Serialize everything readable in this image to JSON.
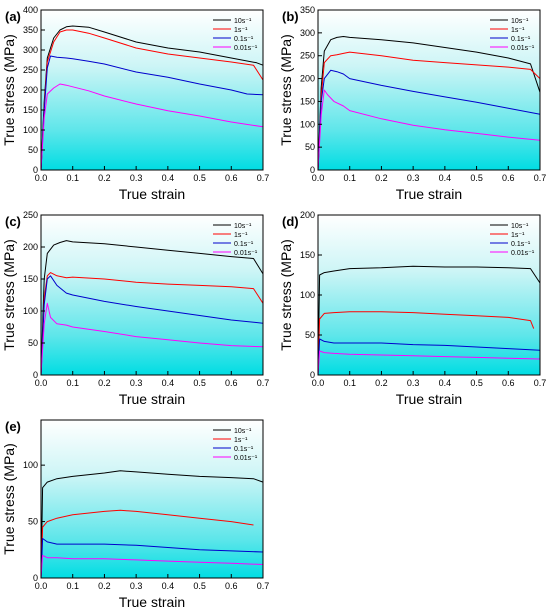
{
  "chart_data": [
    {
      "type": "line",
      "panel": "(a)",
      "xlabel": "True strain",
      "ylabel": "True stress (MPa)",
      "xlim": [
        0.0,
        0.7
      ],
      "ylim": [
        0,
        400
      ],
      "xticks": [
        0.0,
        0.1,
        0.2,
        0.3,
        0.4,
        0.5,
        0.6,
        0.7
      ],
      "yticks": [
        0,
        50,
        100,
        150,
        200,
        250,
        300,
        350,
        400
      ],
      "legend_position": "top-right",
      "series": [
        {
          "name": "10s⁻¹",
          "color": "#000000",
          "x": [
            0,
            0.01,
            0.02,
            0.04,
            0.06,
            0.08,
            0.1,
            0.15,
            0.2,
            0.3,
            0.4,
            0.5,
            0.6,
            0.68,
            0.7
          ],
          "y": [
            0,
            170,
            280,
            330,
            350,
            358,
            360,
            357,
            345,
            320,
            305,
            295,
            280,
            268,
            262
          ]
        },
        {
          "name": "1s⁻¹",
          "color": "#ff0000",
          "x": [
            0,
            0.01,
            0.02,
            0.04,
            0.06,
            0.08,
            0.1,
            0.15,
            0.2,
            0.3,
            0.4,
            0.5,
            0.6,
            0.67,
            0.7
          ],
          "y": [
            0,
            160,
            270,
            320,
            345,
            350,
            350,
            342,
            330,
            305,
            290,
            280,
            270,
            262,
            225
          ]
        },
        {
          "name": "0.1s⁻¹",
          "color": "#0000cc",
          "x": [
            0,
            0.01,
            0.02,
            0.03,
            0.05,
            0.08,
            0.1,
            0.15,
            0.2,
            0.3,
            0.4,
            0.5,
            0.6,
            0.65,
            0.7
          ],
          "y": [
            0,
            150,
            255,
            285,
            282,
            280,
            278,
            272,
            265,
            245,
            232,
            215,
            200,
            190,
            188
          ]
        },
        {
          "name": "0.01s⁻¹",
          "color": "#ff00ff",
          "x": [
            0,
            0.01,
            0.02,
            0.04,
            0.06,
            0.08,
            0.1,
            0.15,
            0.2,
            0.3,
            0.4,
            0.5,
            0.6,
            0.7
          ],
          "y": [
            0,
            130,
            190,
            205,
            215,
            212,
            208,
            198,
            185,
            165,
            148,
            135,
            120,
            108
          ]
        }
      ]
    },
    {
      "type": "line",
      "panel": "(b)",
      "xlabel": "True strain",
      "ylabel": "True stress (MPa)",
      "xlim": [
        0.0,
        0.7
      ],
      "ylim": [
        0,
        350
      ],
      "xticks": [
        0.0,
        0.1,
        0.2,
        0.3,
        0.4,
        0.5,
        0.6,
        0.7
      ],
      "yticks": [
        0,
        50,
        100,
        150,
        200,
        250,
        300,
        350
      ],
      "legend_position": "top-right",
      "series": [
        {
          "name": "10s⁻¹",
          "color": "#000000",
          "x": [
            0,
            0.01,
            0.02,
            0.04,
            0.06,
            0.08,
            0.1,
            0.2,
            0.3,
            0.4,
            0.5,
            0.6,
            0.67,
            0.7
          ],
          "y": [
            0,
            180,
            260,
            285,
            290,
            292,
            290,
            285,
            278,
            268,
            258,
            245,
            232,
            170
          ]
        },
        {
          "name": "1s⁻¹",
          "color": "#ff0000",
          "x": [
            0,
            0.01,
            0.02,
            0.04,
            0.06,
            0.08,
            0.1,
            0.2,
            0.3,
            0.4,
            0.5,
            0.6,
            0.67,
            0.7
          ],
          "y": [
            0,
            160,
            235,
            250,
            252,
            255,
            258,
            250,
            240,
            235,
            230,
            225,
            220,
            200
          ]
        },
        {
          "name": "0.1s⁻¹",
          "color": "#0000cc",
          "x": [
            0,
            0.01,
            0.02,
            0.04,
            0.06,
            0.08,
            0.1,
            0.2,
            0.3,
            0.4,
            0.5,
            0.6,
            0.7
          ],
          "y": [
            0,
            150,
            200,
            218,
            215,
            210,
            200,
            185,
            172,
            160,
            148,
            135,
            122
          ]
        },
        {
          "name": "0.01s⁻¹",
          "color": "#ff00ff",
          "x": [
            0,
            0.01,
            0.02,
            0.03,
            0.05,
            0.08,
            0.1,
            0.2,
            0.3,
            0.4,
            0.5,
            0.6,
            0.7
          ],
          "y": [
            0,
            120,
            175,
            165,
            150,
            140,
            130,
            112,
            98,
            88,
            80,
            72,
            65
          ]
        }
      ]
    },
    {
      "type": "line",
      "panel": "(c)",
      "xlabel": "True strain",
      "ylabel": "True stress (MPa)",
      "xlim": [
        0.0,
        0.7
      ],
      "ylim": [
        0,
        250
      ],
      "xticks": [
        0.0,
        0.1,
        0.2,
        0.3,
        0.4,
        0.5,
        0.6,
        0.7
      ],
      "yticks": [
        0,
        50,
        100,
        150,
        200,
        250
      ],
      "legend_position": "top-right",
      "series": [
        {
          "name": "10s⁻¹",
          "color": "#000000",
          "x": [
            0,
            0.01,
            0.02,
            0.04,
            0.06,
            0.08,
            0.1,
            0.2,
            0.3,
            0.4,
            0.5,
            0.6,
            0.67,
            0.7
          ],
          "y": [
            0,
            150,
            190,
            203,
            207,
            210,
            208,
            205,
            200,
            195,
            190,
            185,
            182,
            158
          ]
        },
        {
          "name": "1s⁻¹",
          "color": "#ff0000",
          "x": [
            0,
            0.01,
            0.02,
            0.03,
            0.05,
            0.08,
            0.1,
            0.2,
            0.3,
            0.4,
            0.5,
            0.6,
            0.67,
            0.7
          ],
          "y": [
            0,
            120,
            155,
            160,
            155,
            152,
            153,
            150,
            145,
            142,
            140,
            138,
            135,
            112
          ]
        },
        {
          "name": "0.1s⁻¹",
          "color": "#0000cc",
          "x": [
            0,
            0.01,
            0.02,
            0.03,
            0.05,
            0.08,
            0.1,
            0.2,
            0.3,
            0.4,
            0.5,
            0.6,
            0.7
          ],
          "y": [
            0,
            110,
            150,
            155,
            140,
            128,
            125,
            115,
            107,
            100,
            93,
            86,
            81
          ]
        },
        {
          "name": "0.01s⁻¹",
          "color": "#ff00ff",
          "x": [
            0,
            0.01,
            0.02,
            0.03,
            0.05,
            0.08,
            0.1,
            0.2,
            0.3,
            0.4,
            0.5,
            0.6,
            0.7
          ],
          "y": [
            0,
            80,
            112,
            90,
            80,
            78,
            75,
            68,
            60,
            55,
            50,
            46,
            44
          ]
        }
      ]
    },
    {
      "type": "line",
      "panel": "(d)",
      "xlabel": "True strain",
      "ylabel": "True stress (MPa)",
      "xlim": [
        0.0,
        0.7
      ],
      "ylim": [
        0,
        200
      ],
      "xticks": [
        0.0,
        0.1,
        0.2,
        0.3,
        0.4,
        0.5,
        0.6,
        0.7
      ],
      "yticks": [
        0,
        50,
        100,
        150,
        200
      ],
      "legend_position": "top-right",
      "series": [
        {
          "name": "10s⁻¹",
          "color": "#000000",
          "x": [
            0,
            0.005,
            0.02,
            0.05,
            0.1,
            0.2,
            0.3,
            0.4,
            0.5,
            0.6,
            0.67,
            0.7
          ],
          "y": [
            0,
            125,
            128,
            130,
            133,
            134,
            136,
            135,
            135,
            134,
            133,
            115
          ]
        },
        {
          "name": "1s⁻¹",
          "color": "#ff0000",
          "x": [
            0,
            0.005,
            0.02,
            0.05,
            0.1,
            0.2,
            0.3,
            0.4,
            0.5,
            0.6,
            0.67,
            0.68
          ],
          "y": [
            0,
            70,
            77,
            78,
            79,
            79,
            78,
            76,
            74,
            72,
            68,
            58
          ]
        },
        {
          "name": "0.1s⁻¹",
          "color": "#0000cc",
          "x": [
            0,
            0.005,
            0.02,
            0.05,
            0.1,
            0.2,
            0.3,
            0.4,
            0.5,
            0.6,
            0.7
          ],
          "y": [
            0,
            45,
            42,
            40,
            40,
            40,
            38,
            37,
            35,
            33,
            31
          ]
        },
        {
          "name": "0.01s⁻¹",
          "color": "#ff00ff",
          "x": [
            0,
            0.005,
            0.02,
            0.05,
            0.1,
            0.2,
            0.3,
            0.4,
            0.5,
            0.6,
            0.7
          ],
          "y": [
            0,
            30,
            28,
            27,
            26,
            25,
            24,
            23,
            22,
            21,
            20
          ]
        }
      ]
    },
    {
      "type": "line",
      "panel": "(e)",
      "xlabel": "True strain",
      "ylabel": "True stress (MPa)",
      "xlim": [
        0.0,
        0.7
      ],
      "ylim": [
        0,
        140
      ],
      "xticks": [
        0.0,
        0.1,
        0.2,
        0.3,
        0.4,
        0.5,
        0.6,
        0.7
      ],
      "yticks": [
        0,
        50,
        100
      ],
      "legend_position": "top-right",
      "series": [
        {
          "name": "10s⁻¹",
          "color": "#000000",
          "x": [
            0,
            0.005,
            0.02,
            0.05,
            0.1,
            0.2,
            0.25,
            0.3,
            0.4,
            0.5,
            0.6,
            0.67,
            0.7
          ],
          "y": [
            0,
            80,
            85,
            88,
            90,
            93,
            95,
            94,
            92,
            90,
            89,
            88,
            85
          ]
        },
        {
          "name": "1s⁻¹",
          "color": "#ff0000",
          "x": [
            0,
            0.005,
            0.02,
            0.05,
            0.1,
            0.2,
            0.25,
            0.3,
            0.4,
            0.5,
            0.6,
            0.67
          ],
          "y": [
            0,
            45,
            50,
            53,
            56,
            59,
            60,
            59,
            56,
            53,
            50,
            47
          ]
        },
        {
          "name": "0.1s⁻¹",
          "color": "#0000cc",
          "x": [
            0,
            0.005,
            0.02,
            0.05,
            0.1,
            0.2,
            0.3,
            0.4,
            0.5,
            0.6,
            0.7
          ],
          "y": [
            0,
            35,
            32,
            30,
            30,
            30,
            29,
            27,
            25,
            24,
            23
          ]
        },
        {
          "name": "0.01s⁻¹",
          "color": "#ff00ff",
          "x": [
            0,
            0.005,
            0.02,
            0.05,
            0.1,
            0.2,
            0.3,
            0.4,
            0.5,
            0.6,
            0.7
          ],
          "y": [
            0,
            20,
            18,
            18,
            17,
            17,
            16,
            15,
            14,
            13,
            12
          ]
        }
      ]
    }
  ]
}
